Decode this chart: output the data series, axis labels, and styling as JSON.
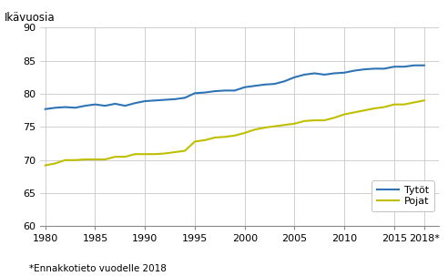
{
  "ylabel": "Ikävuosia",
  "footnote": "*Ennakkotieto vuodelle 2018",
  "ylim": [
    60,
    90
  ],
  "yticks": [
    60,
    65,
    70,
    75,
    80,
    85,
    90
  ],
  "years": [
    1980,
    1981,
    1982,
    1983,
    1984,
    1985,
    1986,
    1987,
    1988,
    1989,
    1990,
    1991,
    1992,
    1993,
    1994,
    1995,
    1996,
    1997,
    1998,
    1999,
    2000,
    2001,
    2002,
    2003,
    2004,
    2005,
    2006,
    2007,
    2008,
    2009,
    2010,
    2011,
    2012,
    2013,
    2014,
    2015,
    2016,
    2017,
    2018
  ],
  "tytot": [
    77.7,
    77.9,
    78.0,
    77.9,
    78.2,
    78.4,
    78.2,
    78.5,
    78.2,
    78.6,
    78.9,
    79.0,
    79.1,
    79.2,
    79.4,
    80.1,
    80.2,
    80.4,
    80.5,
    80.5,
    81.0,
    81.2,
    81.4,
    81.5,
    81.9,
    82.5,
    82.9,
    83.1,
    82.9,
    83.1,
    83.2,
    83.5,
    83.7,
    83.8,
    83.8,
    84.1,
    84.1,
    84.3,
    84.3
  ],
  "pojat": [
    69.2,
    69.5,
    70.0,
    70.0,
    70.1,
    70.1,
    70.1,
    70.5,
    70.5,
    70.9,
    70.9,
    70.9,
    71.0,
    71.2,
    71.4,
    72.8,
    73.0,
    73.4,
    73.5,
    73.7,
    74.1,
    74.6,
    74.9,
    75.1,
    75.3,
    75.5,
    75.9,
    76.0,
    76.0,
    76.4,
    76.9,
    77.2,
    77.5,
    77.8,
    78.0,
    78.4,
    78.4,
    78.7,
    79.0
  ],
  "color_tytot": "#2E74B5",
  "color_pojat": "#BFBF00",
  "line_width": 1.5,
  "background_color": "#ffffff",
  "grid_color": "#c8c8c8",
  "xticks": [
    1980,
    1985,
    1990,
    1995,
    2000,
    2005,
    2010,
    2015,
    2018
  ],
  "xtick_labels": [
    "1980",
    "1985",
    "1990",
    "1995",
    "2000",
    "2005",
    "2010",
    "2015",
    "2018*"
  ],
  "xlim": [
    1979.5,
    2019.5
  ]
}
